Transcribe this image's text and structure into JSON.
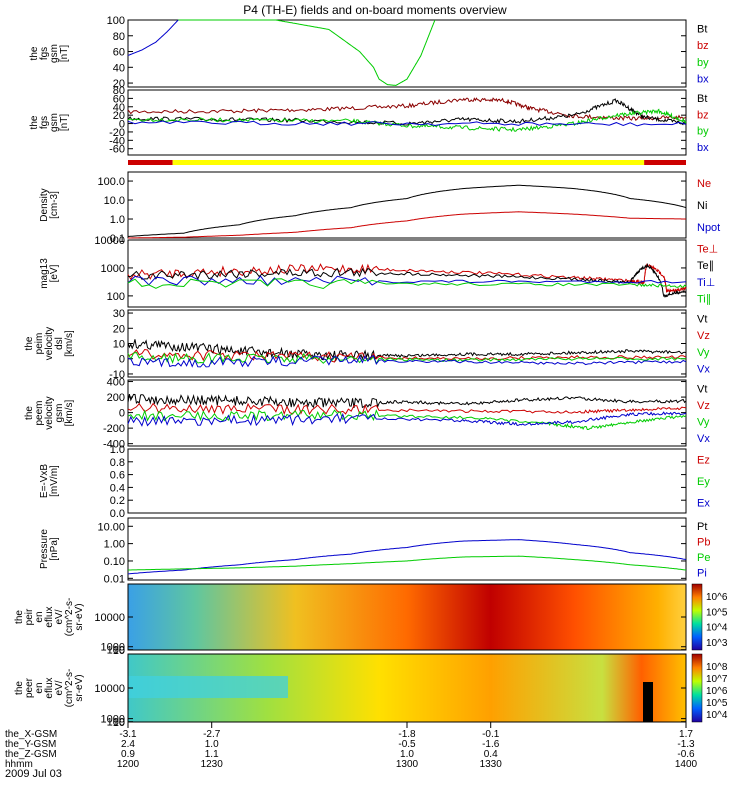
{
  "title": "P4 (TH-E) fields and on-board moments overview",
  "date_label": "2009 Jul 03",
  "colors": {
    "black": "#000000",
    "red": "#cc0000",
    "green": "#00cc00",
    "blue": "#0000cc",
    "darkred": "#8b0000",
    "yellow": "#ffff00"
  },
  "chart_data": [
    {
      "type": "line",
      "ylabel": [
        "the",
        "fgs",
        "gsm",
        "[nT]"
      ],
      "yticks": [
        "100",
        "80",
        "60",
        "40",
        "20"
      ],
      "legend": [
        {
          "label": "Bt",
          "color": "black"
        },
        {
          "label": "bz",
          "color": "red"
        },
        {
          "label": "by",
          "color": "green"
        },
        {
          "label": "bx",
          "color": "blue"
        }
      ],
      "series": [
        {
          "name": "by",
          "color": "green",
          "x": [
            1218,
            1233,
            1253,
            1272,
            1283,
            1288,
            1290,
            1293,
            1296,
            1300,
            1305,
            1310
          ],
          "y": [
            100,
            100,
            100,
            88,
            60,
            40,
            25,
            18,
            17,
            25,
            55,
            100
          ]
        },
        {
          "name": "bx",
          "color": "blue",
          "x": [
            1200,
            1205,
            1210,
            1214,
            1218
          ],
          "y": [
            55,
            62,
            72,
            85,
            100
          ]
        }
      ],
      "ylim": [
        15,
        100
      ]
    },
    {
      "type": "line",
      "ylabel": [
        "the",
        "fgs",
        "gsm",
        "[nT]"
      ],
      "yticks": [
        "80",
        "60",
        "40",
        "20",
        "0",
        "-20",
        "-40",
        "-60"
      ],
      "legend": [
        {
          "label": "Bt",
          "color": "black"
        },
        {
          "label": "bz",
          "color": "red"
        },
        {
          "label": "by",
          "color": "green"
        },
        {
          "label": "bx",
          "color": "blue"
        }
      ],
      "series": [
        {
          "name": "bz",
          "color": "darkred",
          "x": [
            1200,
            1240,
            1270,
            1300,
            1320,
            1335,
            1345,
            1360,
            1380,
            1400
          ],
          "y": [
            28,
            30,
            34,
            42,
            58,
            55,
            35,
            18,
            12,
            15
          ]
        },
        {
          "name": "Bt",
          "color": "black",
          "x": [
            1200,
            1230,
            1260,
            1300,
            1320,
            1340,
            1360,
            1375,
            1385,
            1400
          ],
          "y": [
            12,
            10,
            8,
            0,
            10,
            5,
            20,
            55,
            15,
            0
          ]
        },
        {
          "name": "by",
          "color": "green",
          "x": [
            1200,
            1240,
            1280,
            1300,
            1320,
            1340,
            1360,
            1375,
            1390,
            1400
          ],
          "y": [
            10,
            8,
            6,
            -5,
            -10,
            -15,
            0,
            20,
            30,
            5
          ]
        },
        {
          "name": "bx",
          "color": "blue",
          "x": [
            1200,
            1300,
            1400
          ],
          "y": [
            2,
            0,
            -2
          ]
        }
      ],
      "ylim": [
        -75,
        80
      ],
      "status_bar": [
        {
          "x": [
            1200,
            1216
          ],
          "color": "red"
        },
        {
          "x": [
            1216,
            1385
          ],
          "color": "yellow"
        },
        {
          "x": [
            1385,
            1400
          ],
          "color": "red"
        }
      ]
    },
    {
      "type": "line",
      "log": true,
      "ylabel": [
        "Density",
        "[cm-3]"
      ],
      "yticks": [
        "100.0",
        "10.0",
        "1.0",
        "0.1"
      ],
      "legend": [
        {
          "label": "Ne",
          "color": "red"
        },
        {
          "label": "Ni",
          "color": "black"
        },
        {
          "label": "Npot",
          "color": "blue"
        }
      ],
      "series": [
        {
          "name": "Ni",
          "color": "black",
          "x": [
            1200,
            1220,
            1240,
            1260,
            1280,
            1300,
            1320,
            1340,
            1360,
            1380,
            1400
          ],
          "y": [
            0.12,
            0.18,
            0.5,
            1.5,
            4,
            12,
            40,
            60,
            40,
            12,
            4
          ]
        },
        {
          "name": "Ne",
          "color": "red",
          "x": [
            1200,
            1220,
            1240,
            1260,
            1280,
            1300,
            1320,
            1340,
            1360,
            1380,
            1400
          ],
          "y": [
            0.1,
            0.11,
            0.14,
            0.2,
            0.35,
            0.8,
            1.8,
            2.4,
            1.8,
            1.1,
            1.0
          ]
        }
      ],
      "ylim": [
        0.1,
        300
      ]
    },
    {
      "type": "line",
      "log": true,
      "ylabel": [
        "mag13",
        "[eV]"
      ],
      "yticks": [
        "10000",
        "1000",
        "100"
      ],
      "legend": [
        {
          "label": "Te⊥",
          "color": "red"
        },
        {
          "label": "Te∥",
          "color": "black"
        },
        {
          "label": "Ti⊥",
          "color": "blue"
        },
        {
          "label": "Ti∥",
          "color": "green"
        }
      ],
      "series": [
        {
          "name": "Te⊥",
          "color": "red",
          "x": [
            1200,
            1240,
            1280,
            1320,
            1360,
            1380,
            1385,
            1386,
            1392,
            1393,
            1400
          ],
          "y": [
            550,
            800,
            950,
            700,
            450,
            350,
            300,
            1300,
            500,
            150,
            180
          ]
        },
        {
          "name": "Te∥",
          "color": "black",
          "x": [
            1200,
            1240,
            1280,
            1320,
            1360,
            1380,
            1386,
            1392,
            1400
          ],
          "y": [
            500,
            650,
            700,
            550,
            400,
            300,
            1200,
            100,
            150
          ]
        },
        {
          "name": "Ti⊥",
          "color": "blue",
          "x": [
            1200,
            1300,
            1400
          ],
          "y": [
            350,
            330,
            320
          ]
        },
        {
          "name": "Ti∥",
          "color": "green",
          "x": [
            1200,
            1300,
            1380,
            1400
          ],
          "y": [
            280,
            270,
            250,
            220
          ]
        }
      ],
      "ylim": [
        40,
        10000
      ]
    },
    {
      "type": "line",
      "ylabel": [
        "the",
        "peim",
        "velocity",
        "dsl",
        "[km/s]"
      ],
      "yticks": [
        "30",
        "20",
        "10",
        "0",
        "-10"
      ],
      "legend": [
        {
          "label": "Vt",
          "color": "black"
        },
        {
          "label": "Vz",
          "color": "red"
        },
        {
          "label": "Vy",
          "color": "green"
        },
        {
          "label": "Vx",
          "color": "blue"
        }
      ],
      "series": [
        {
          "name": "Vt",
          "color": "black",
          "x": [
            1200,
            1220,
            1240,
            1260,
            1280,
            1300,
            1320,
            1340,
            1360,
            1380,
            1400
          ],
          "y": [
            10,
            8,
            5,
            3,
            2,
            2,
            3,
            3,
            4,
            5,
            4
          ]
        },
        {
          "name": "Vz",
          "color": "red",
          "x": [
            1200,
            1240,
            1280,
            1320,
            1360,
            1400
          ],
          "y": [
            3,
            2,
            1,
            0,
            1,
            1
          ]
        },
        {
          "name": "Vy",
          "color": "green",
          "x": [
            1200,
            1240,
            1280,
            1320,
            1360,
            1400
          ],
          "y": [
            1,
            0,
            0,
            -1,
            0,
            0
          ]
        },
        {
          "name": "Vx",
          "color": "blue",
          "x": [
            1200,
            1240,
            1280,
            1320,
            1360,
            1400
          ],
          "y": [
            -3,
            -2,
            -1,
            -2,
            -3,
            -2
          ]
        }
      ],
      "ylim": [
        -12,
        32
      ]
    },
    {
      "type": "line",
      "ylabel": [
        "the",
        "peem",
        "velocity",
        "gsm",
        "[km/s]"
      ],
      "yticks": [
        "400",
        "200",
        "0",
        "-200",
        "-400"
      ],
      "legend": [
        {
          "label": "Vt",
          "color": "black"
        },
        {
          "label": "Vz",
          "color": "red"
        },
        {
          "label": "Vy",
          "color": "green"
        },
        {
          "label": "Vx",
          "color": "blue"
        }
      ],
      "series": [
        {
          "name": "Vt",
          "color": "black",
          "x": [
            1200,
            1220,
            1240,
            1260,
            1280,
            1300,
            1320,
            1340,
            1360,
            1380,
            1400
          ],
          "y": [
            180,
            160,
            150,
            130,
            120,
            140,
            110,
            160,
            190,
            140,
            150
          ]
        },
        {
          "name": "Vz",
          "color": "red",
          "x": [
            1200,
            1240,
            1280,
            1320,
            1360,
            1380,
            1400
          ],
          "y": [
            60,
            50,
            40,
            20,
            10,
            30,
            60
          ]
        },
        {
          "name": "Vy",
          "color": "green",
          "x": [
            1200,
            1240,
            1280,
            1320,
            1350,
            1365,
            1380,
            1400
          ],
          "y": [
            -40,
            -40,
            -30,
            -60,
            -140,
            -200,
            -120,
            -40
          ]
        },
        {
          "name": "Vx",
          "color": "blue",
          "x": [
            1200,
            1240,
            1280,
            1320,
            1340,
            1360,
            1380,
            1400
          ],
          "y": [
            -120,
            -100,
            -80,
            -100,
            -150,
            -120,
            -20,
            -10
          ]
        }
      ],
      "ylim": [
        -430,
        420
      ]
    },
    {
      "type": "line",
      "ylabel": [
        "E=-VxB",
        "[mV/m]"
      ],
      "yticks": [
        "1.0",
        "0.8",
        "0.6",
        "0.4",
        "0.2",
        "0.0"
      ],
      "legend": [
        {
          "label": "Ez",
          "color": "red"
        },
        {
          "label": "Ey",
          "color": "green"
        },
        {
          "label": "Ex",
          "color": "blue"
        }
      ],
      "series": [],
      "ylim": [
        0,
        1.0
      ]
    },
    {
      "type": "line",
      "log": true,
      "ylabel": [
        "Pressure",
        "[nPa]"
      ],
      "yticks": [
        "10.00",
        "1.00",
        "0.10",
        "0.01"
      ],
      "legend": [
        {
          "label": "Pt",
          "color": "black"
        },
        {
          "label": "Pb",
          "color": "red"
        },
        {
          "label": "Pe",
          "color": "green"
        },
        {
          "label": "Pi",
          "color": "blue"
        }
      ],
      "series": [
        {
          "name": "Pi",
          "color": "blue",
          "x": [
            1200,
            1220,
            1240,
            1260,
            1280,
            1300,
            1320,
            1340,
            1360,
            1380,
            1400
          ],
          "y": [
            0.018,
            0.03,
            0.06,
            0.12,
            0.25,
            0.6,
            1.4,
            1.7,
            0.9,
            0.3,
            0.12
          ]
        },
        {
          "name": "Pe",
          "color": "green",
          "x": [
            1200,
            1220,
            1240,
            1260,
            1280,
            1300,
            1320,
            1340,
            1360,
            1380,
            1400
          ],
          "y": [
            0.03,
            0.035,
            0.04,
            0.05,
            0.07,
            0.1,
            0.17,
            0.19,
            0.12,
            0.06,
            0.03
          ]
        }
      ],
      "ylim": [
        0.008,
        30
      ]
    },
    {
      "type": "heatmap",
      "ylabel": [
        "the",
        "peir",
        "en",
        "eflux",
        "eV/",
        "(cm^2-s-",
        "sr-eV)"
      ],
      "yticks": [
        "10000",
        "1000",
        "100",
        "10"
      ],
      "colorbar_ticks": [
        "10^6",
        "10^5",
        "10^4",
        "10^3"
      ],
      "ylim": [
        8,
        20000
      ]
    },
    {
      "type": "heatmap",
      "ylabel": [
        "the",
        "peer",
        "en",
        "eflux",
        "eV/",
        "(cm^2-s-",
        "sr-eV)"
      ],
      "yticks": [
        "10000",
        "1000",
        "100",
        "10"
      ],
      "colorbar_ticks": [
        "10^8",
        "10^7",
        "10^6",
        "10^5",
        "10^4"
      ],
      "ylim": [
        8,
        20000
      ]
    }
  ],
  "x_axis": {
    "xlim": [
      1200,
      1400
    ],
    "row_labels": [
      "the_X-GSM",
      "the_Y-GSM",
      "the_Z-GSM",
      "hhmm"
    ],
    "ticks": [
      {
        "x": 1200,
        "vals": [
          "-3.1",
          "2.4",
          "0.9",
          "1200"
        ]
      },
      {
        "x": 1230,
        "vals": [
          "-2.7",
          "1.0",
          "1.1",
          "1230"
        ]
      },
      {
        "x": 1300,
        "vals": [
          "-1.8",
          "-0.5",
          "1.0",
          "1300"
        ]
      },
      {
        "x": 1330,
        "vals": [
          "-0.1",
          "-1.6",
          "0.4",
          "1330"
        ]
      },
      {
        "x": 1400,
        "vals": [
          "1.7",
          "-1.3",
          "-0.6",
          "1400"
        ]
      }
    ]
  }
}
